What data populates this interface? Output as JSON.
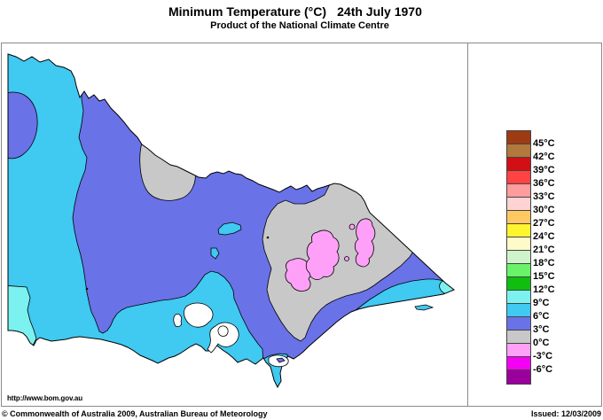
{
  "header": {
    "title": "Minimum Temperature (°C)",
    "date": "24th July 1970",
    "subtitle": "Product of the National Climate Centre"
  },
  "legend": {
    "colors": [
      "#9E3B12",
      "#B2783C",
      "#D20F14",
      "#FF4343",
      "#FF9C9C",
      "#FFD2D4",
      "#FFC863",
      "#FFF52F",
      "#FFFAC9",
      "#CFF3CB",
      "#69F369",
      "#0FBE0F",
      "#7BF2EF",
      "#40C9F1",
      "#6A72E8",
      "#C8C8C8",
      "#FFA0F8",
      "#F400F4",
      "#9C009C"
    ],
    "labels": [
      "45°C",
      "42°C",
      "39°C",
      "36°C",
      "33°C",
      "30°C",
      "27°C",
      "24°C",
      "21°C",
      "18°C",
      "15°C",
      "12°C",
      "9°C",
      "6°C",
      "3°C",
      "0°C",
      "-3°C",
      "-6°C"
    ]
  },
  "map": {
    "region": "Victoria, Australia",
    "colors": {
      "temp_9_12": "#7BF2EF",
      "temp_6_9": "#40C9F1",
      "temp_3_6": "#6A72E8",
      "temp_0_3": "#C8C8C8",
      "temp_m3_0": "#FFA0F8",
      "water": "#FFFFFF",
      "outline": "#000000"
    }
  },
  "footer": {
    "url": "http://www.bom.gov.au",
    "copyright": "© Commonwealth of Australia 2009, Australian Bureau of Meteorology",
    "issued": "Issued: 12/03/2009"
  },
  "chart_data": {
    "type": "map",
    "title": "Minimum Temperature (°C)",
    "date": "24th July 1970",
    "region": "Victoria, Australia",
    "legend_scale_celsius": [
      45,
      42,
      39,
      36,
      33,
      30,
      27,
      24,
      21,
      18,
      15,
      12,
      9,
      6,
      3,
      0,
      -3,
      -6
    ],
    "visible_temperature_zones": [
      {
        "range_c": "9 to 12",
        "color": "#7BF2EF",
        "location": "far south-west corner and far-east coastal tip"
      },
      {
        "range_c": "6 to 9",
        "color": "#40C9F1",
        "location": "north-west band, west and south coastal strips, eastern coastal strip, two small central patches"
      },
      {
        "range_c": "3 to 6",
        "color": "#6A72E8",
        "location": "most of central and northern Victoria"
      },
      {
        "range_c": "0 to 3",
        "color": "#C8C8C8",
        "location": "large north-east / eastern highlands area, teardrop patch on northern border, tongue into South Gippsland"
      },
      {
        "range_c": "-3 to 0",
        "color": "#FFA0F8",
        "location": "alpine patches inside the north-east grey zone"
      }
    ]
  }
}
